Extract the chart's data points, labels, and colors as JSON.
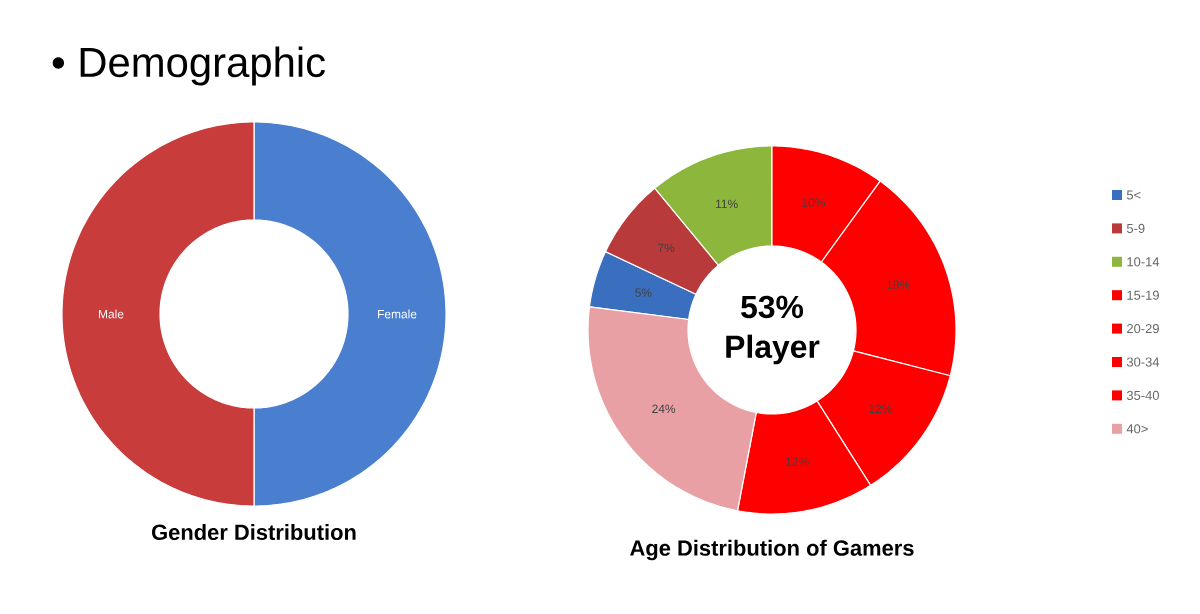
{
  "chart_data": [
    {
      "type": "donut",
      "title": "Gender Distribution",
      "categories": [
        "Female",
        "Male"
      ],
      "values": [
        50,
        50
      ],
      "colors": [
        "#4a7fd0",
        "#c83c3c"
      ],
      "legend": false,
      "annotations": [
        "• Demographic"
      ]
    },
    {
      "type": "donut",
      "title": "Age Distribution of Gamers",
      "categories": [
        "5<",
        "5-9",
        "10-14",
        "15-19",
        "20-29",
        "30-34",
        "35-40",
        "40>"
      ],
      "values": [
        5,
        7,
        11,
        10,
        19,
        12,
        12,
        24
      ],
      "colors": [
        "#3a6fc0",
        "#b83a3a",
        "#8cb63c",
        "#ff0000",
        "#ff0000",
        "#ff0000",
        "#ff0000",
        "#e8a0a4"
      ],
      "value_labels": [
        "5%",
        "7%",
        "11%",
        "10%",
        "19%",
        "12%",
        "12%",
        "24%"
      ],
      "legend": "right",
      "annotations": [
        "53% Player"
      ]
    }
  ]
}
